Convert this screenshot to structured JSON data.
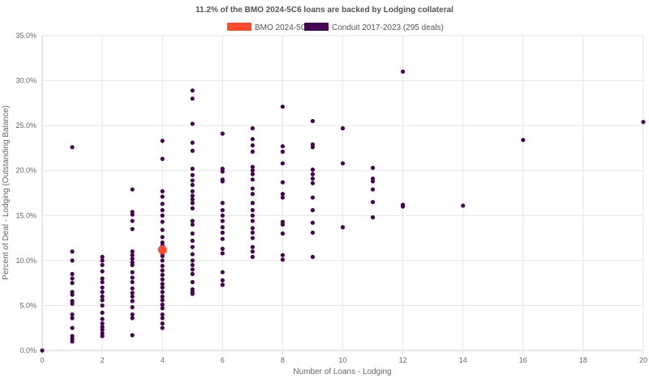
{
  "chart_data": {
    "type": "scatter",
    "title": "11.2% of the BMO 2024-5C6 loans are backed by Lodging collateral",
    "xlabel": "Number of Loans - Lodging",
    "ylabel": "Percent of Deal - Lodging (Outstanding Balance)",
    "xlim": [
      0,
      20
    ],
    "ylim": [
      0,
      35
    ],
    "x_ticks": [
      "0",
      "2",
      "4",
      "6",
      "8",
      "10",
      "12",
      "14",
      "16",
      "18",
      "20"
    ],
    "y_ticks": [
      "0.0%",
      "5.0%",
      "10.0%",
      "15.0%",
      "20.0%",
      "25.0%",
      "30.0%",
      "35.0%"
    ],
    "grid": true,
    "legend_position": "top",
    "series": [
      {
        "name": "BMO 2024-5C6",
        "color": "#ff4a2e",
        "points": [
          [
            4,
            11.2
          ]
        ]
      },
      {
        "name": "Conduit 2017-2023 (295 deals)",
        "color": "#44044f",
        "points": [
          [
            0,
            0
          ],
          [
            1,
            22.6
          ],
          [
            1,
            11.0
          ],
          [
            1,
            10.0
          ],
          [
            1,
            8.5
          ],
          [
            1,
            8.0
          ],
          [
            1,
            7.5
          ],
          [
            1,
            6.5
          ],
          [
            1,
            6.2
          ],
          [
            1,
            5.5
          ],
          [
            1,
            5.2
          ],
          [
            1,
            4.0
          ],
          [
            1,
            3.6
          ],
          [
            1,
            2.5
          ],
          [
            1,
            1.6
          ],
          [
            1,
            1.3
          ],
          [
            1,
            1.0
          ],
          [
            2,
            10.4
          ],
          [
            2,
            10.0
          ],
          [
            2,
            9.5
          ],
          [
            2,
            8.8
          ],
          [
            2,
            8.0
          ],
          [
            2,
            7.6
          ],
          [
            2,
            7.0
          ],
          [
            2,
            6.5
          ],
          [
            2,
            6.0
          ],
          [
            2,
            5.6
          ],
          [
            2,
            5.0
          ],
          [
            2,
            4.2
          ],
          [
            2,
            3.5
          ],
          [
            2,
            3.0
          ],
          [
            2,
            2.6
          ],
          [
            2,
            2.3
          ],
          [
            2,
            1.9
          ],
          [
            2,
            1.6
          ],
          [
            3,
            17.9
          ],
          [
            3,
            15.4
          ],
          [
            3,
            15.1
          ],
          [
            3,
            14.4
          ],
          [
            3,
            13.5
          ],
          [
            3,
            11.0
          ],
          [
            3,
            10.6
          ],
          [
            3,
            10.2
          ],
          [
            3,
            9.8
          ],
          [
            3,
            9.5
          ],
          [
            3,
            8.7
          ],
          [
            3,
            8.1
          ],
          [
            3,
            7.6
          ],
          [
            3,
            6.9
          ],
          [
            3,
            6.4
          ],
          [
            3,
            6.0
          ],
          [
            3,
            5.5
          ],
          [
            3,
            4.8
          ],
          [
            3,
            4.0
          ],
          [
            3,
            3.6
          ],
          [
            3,
            1.7
          ],
          [
            4,
            23.3
          ],
          [
            4,
            21.3
          ],
          [
            4,
            17.7
          ],
          [
            4,
            17.1
          ],
          [
            4,
            16.3
          ],
          [
            4,
            15.6
          ],
          [
            4,
            15.0
          ],
          [
            4,
            14.3
          ],
          [
            4,
            13.4
          ],
          [
            4,
            12.6
          ],
          [
            4,
            12.0
          ],
          [
            4,
            11.7
          ],
          [
            4,
            11.3
          ],
          [
            4,
            10.8
          ],
          [
            4,
            10.5
          ],
          [
            4,
            10.0
          ],
          [
            4,
            9.4
          ],
          [
            4,
            8.9
          ],
          [
            4,
            8.4
          ],
          [
            4,
            7.9
          ],
          [
            4,
            7.4
          ],
          [
            4,
            7.0
          ],
          [
            4,
            6.5
          ],
          [
            4,
            6.0
          ],
          [
            4,
            5.6
          ],
          [
            4,
            5.1
          ],
          [
            4,
            4.7
          ],
          [
            4,
            4.0
          ],
          [
            4,
            3.6
          ],
          [
            4,
            3.0
          ],
          [
            4,
            2.5
          ],
          [
            5,
            28.9
          ],
          [
            5,
            28.0
          ],
          [
            5,
            25.2
          ],
          [
            5,
            23.1
          ],
          [
            5,
            22.2
          ],
          [
            5,
            20.2
          ],
          [
            5,
            19.5
          ],
          [
            5,
            18.9
          ],
          [
            5,
            18.4
          ],
          [
            5,
            17.7
          ],
          [
            5,
            17.2
          ],
          [
            5,
            16.8
          ],
          [
            5,
            16.4
          ],
          [
            5,
            15.8
          ],
          [
            5,
            14.4
          ],
          [
            5,
            14.0
          ],
          [
            5,
            13.0
          ],
          [
            5,
            12.2
          ],
          [
            5,
            11.5
          ],
          [
            5,
            10.7
          ],
          [
            5,
            10.0
          ],
          [
            5,
            9.5
          ],
          [
            5,
            9.0
          ],
          [
            5,
            8.5
          ],
          [
            5,
            7.6
          ],
          [
            5,
            6.8
          ],
          [
            5,
            6.5
          ],
          [
            5,
            6.3
          ],
          [
            6,
            24.1
          ],
          [
            6,
            20.2
          ],
          [
            6,
            19.9
          ],
          [
            6,
            19.0
          ],
          [
            6,
            18.8
          ],
          [
            6,
            16.4
          ],
          [
            6,
            15.6
          ],
          [
            6,
            15.0
          ],
          [
            6,
            14.4
          ],
          [
            6,
            13.7
          ],
          [
            6,
            13.1
          ],
          [
            6,
            12.4
          ],
          [
            6,
            11.3
          ],
          [
            6,
            10.8
          ],
          [
            6,
            8.7
          ],
          [
            6,
            7.8
          ],
          [
            6,
            7.3
          ],
          [
            7,
            24.7
          ],
          [
            7,
            23.5
          ],
          [
            7,
            22.8
          ],
          [
            7,
            22.1
          ],
          [
            7,
            20.4
          ],
          [
            7,
            20.0
          ],
          [
            7,
            19.6
          ],
          [
            7,
            19.0
          ],
          [
            7,
            18.0
          ],
          [
            7,
            17.4
          ],
          [
            7,
            16.4
          ],
          [
            7,
            15.6
          ],
          [
            7,
            15.0
          ],
          [
            7,
            14.4
          ],
          [
            7,
            13.6
          ],
          [
            7,
            13.1
          ],
          [
            7,
            12.5
          ],
          [
            7,
            11.5
          ],
          [
            7,
            11.0
          ],
          [
            7,
            10.4
          ],
          [
            8,
            27.1
          ],
          [
            8,
            22.7
          ],
          [
            8,
            22.1
          ],
          [
            8,
            20.8
          ],
          [
            8,
            18.7
          ],
          [
            8,
            17.4
          ],
          [
            8,
            17.0
          ],
          [
            8,
            14.3
          ],
          [
            8,
            14.0
          ],
          [
            8,
            13.0
          ],
          [
            8,
            10.6
          ],
          [
            8,
            10.1
          ],
          [
            9,
            25.5
          ],
          [
            9,
            22.9
          ],
          [
            9,
            22.6
          ],
          [
            9,
            20.1
          ],
          [
            9,
            19.6
          ],
          [
            9,
            19.1
          ],
          [
            9,
            18.6
          ],
          [
            9,
            17.0
          ],
          [
            9,
            15.6
          ],
          [
            9,
            14.2
          ],
          [
            9,
            13.1
          ],
          [
            9,
            10.4
          ],
          [
            10,
            24.7
          ],
          [
            10,
            20.8
          ],
          [
            10,
            13.7
          ],
          [
            11,
            20.3
          ],
          [
            11,
            19.1
          ],
          [
            11,
            18.8
          ],
          [
            11,
            17.9
          ],
          [
            11,
            16.5
          ],
          [
            11,
            14.8
          ],
          [
            12,
            31.0
          ],
          [
            12,
            16.2
          ],
          [
            12,
            16.0
          ],
          [
            14,
            16.1
          ],
          [
            16,
            23.4
          ],
          [
            20,
            25.4
          ]
        ]
      }
    ]
  }
}
